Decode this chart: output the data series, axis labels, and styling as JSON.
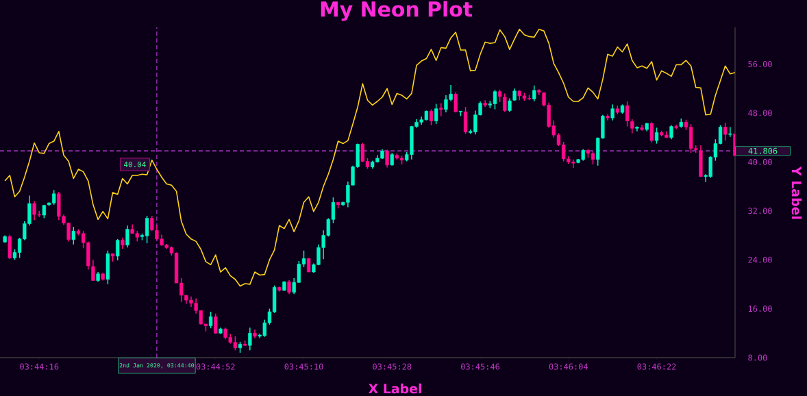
{
  "chart_data": {
    "type": "candlestick",
    "title": "My Neon Plot",
    "xlabel": "X Label",
    "ylabel": "Y Label",
    "x": [
      "2020-01-02T03:44:09",
      "2020-01-02T03:44:10",
      "2020-01-02T03:44:11",
      "2020-01-02T03:44:12",
      "2020-01-02T03:44:13",
      "2020-01-02T03:44:14",
      "2020-01-02T03:44:15",
      "2020-01-02T03:44:16",
      "2020-01-02T03:44:17",
      "2020-01-02T03:44:18",
      "2020-01-02T03:44:19",
      "2020-01-02T03:44:20",
      "2020-01-02T03:44:21",
      "2020-01-02T03:44:22",
      "2020-01-02T03:44:23",
      "2020-01-02T03:44:24",
      "2020-01-02T03:44:25",
      "2020-01-02T03:44:26",
      "2020-01-02T03:44:27",
      "2020-01-02T03:44:28",
      "2020-01-02T03:44:29",
      "2020-01-02T03:44:30",
      "2020-01-02T03:44:31",
      "2020-01-02T03:44:32",
      "2020-01-02T03:44:33",
      "2020-01-02T03:44:34",
      "2020-01-02T03:44:35",
      "2020-01-02T03:44:36",
      "2020-01-02T03:44:37",
      "2020-01-02T03:44:38",
      "2020-01-02T03:44:39",
      "2020-01-02T03:44:40",
      "2020-01-02T03:44:41",
      "2020-01-02T03:44:42",
      "2020-01-02T03:44:43",
      "2020-01-02T03:44:44",
      "2020-01-02T03:44:45",
      "2020-01-02T03:44:46",
      "2020-01-02T03:44:47",
      "2020-01-02T03:44:48",
      "2020-01-02T03:44:49",
      "2020-01-02T03:44:50",
      "2020-01-02T03:44:51",
      "2020-01-02T03:44:52",
      "2020-01-02T03:44:53",
      "2020-01-02T03:44:54",
      "2020-01-02T03:44:55",
      "2020-01-02T03:44:56",
      "2020-01-02T03:44:57",
      "2020-01-02T03:44:58",
      "2020-01-02T03:44:59",
      "2020-01-02T03:45:00",
      "2020-01-02T03:45:01",
      "2020-01-02T03:45:02",
      "2020-01-02T03:45:03",
      "2020-01-02T03:45:04",
      "2020-01-02T03:45:05",
      "2020-01-02T03:45:06",
      "2020-01-02T03:45:07",
      "2020-01-02T03:45:08",
      "2020-01-02T03:45:09",
      "2020-01-02T03:45:10",
      "2020-01-02T03:45:11",
      "2020-01-02T03:45:12",
      "2020-01-02T03:45:13",
      "2020-01-02T03:45:14",
      "2020-01-02T03:45:15",
      "2020-01-02T03:45:16",
      "2020-01-02T03:45:17",
      "2020-01-02T03:45:18",
      "2020-01-02T03:45:19",
      "2020-01-02T03:45:20",
      "2020-01-02T03:45:21",
      "2020-01-02T03:45:22",
      "2020-01-02T03:45:23",
      "2020-01-02T03:45:24",
      "2020-01-02T03:45:25",
      "2020-01-02T03:45:26",
      "2020-01-02T03:45:27",
      "2020-01-02T03:45:28",
      "2020-01-02T03:45:29",
      "2020-01-02T03:45:30",
      "2020-01-02T03:45:31",
      "2020-01-02T03:45:32",
      "2020-01-02T03:45:33",
      "2020-01-02T03:45:34",
      "2020-01-02T03:45:35",
      "2020-01-02T03:45:36",
      "2020-01-02T03:45:37",
      "2020-01-02T03:45:38",
      "2020-01-02T03:45:39",
      "2020-01-02T03:45:40",
      "2020-01-02T03:45:41",
      "2020-01-02T03:45:42",
      "2020-01-02T03:45:43",
      "2020-01-02T03:45:44",
      "2020-01-02T03:45:45",
      "2020-01-02T03:45:46",
      "2020-01-02T03:45:47",
      "2020-01-02T03:45:48",
      "2020-01-02T03:45:49",
      "2020-01-02T03:45:50",
      "2020-01-02T03:45:51",
      "2020-01-02T03:45:52",
      "2020-01-02T03:45:53",
      "2020-01-02T03:45:54",
      "2020-01-02T03:45:55",
      "2020-01-02T03:45:56",
      "2020-01-02T03:45:57",
      "2020-01-02T03:45:58",
      "2020-01-02T03:45:59",
      "2020-01-02T03:46:00",
      "2020-01-02T03:46:01",
      "2020-01-02T03:46:02",
      "2020-01-02T03:46:03",
      "2020-01-02T03:46:04",
      "2020-01-02T03:46:05",
      "2020-01-02T03:46:06",
      "2020-01-02T03:46:07",
      "2020-01-02T03:46:08",
      "2020-01-02T03:46:09",
      "2020-01-02T03:46:10",
      "2020-01-02T03:46:11",
      "2020-01-02T03:46:12",
      "2020-01-02T03:46:13",
      "2020-01-02T03:46:14",
      "2020-01-02T03:46:15",
      "2020-01-02T03:46:16",
      "2020-01-02T03:46:17",
      "2020-01-02T03:46:18",
      "2020-01-02T03:46:19",
      "2020-01-02T03:46:20",
      "2020-01-02T03:46:21",
      "2020-01-02T03:46:22",
      "2020-01-02T03:46:23",
      "2020-01-02T03:46:24",
      "2020-01-02T03:46:25",
      "2020-01-02T03:46:26",
      "2020-01-02T03:46:27",
      "2020-01-02T03:46:28",
      "2020-01-02T03:46:29",
      "2020-01-02T03:46:30",
      "2020-01-02T03:46:31",
      "2020-01-02T03:46:32",
      "2020-01-02T03:46:33",
      "2020-01-02T03:46:34",
      "2020-01-02T03:46:35",
      "2020-01-02T03:46:36",
      "2020-01-02T03:46:37",
      "2020-01-02T03:46:38"
    ],
    "series": [
      {
        "type": "candlestick",
        "ohlc": [
          [
            26.9,
            28.0,
            26.8,
            27.8
          ],
          [
            27.8,
            28.1,
            24.1,
            24.3
          ],
          [
            24.3,
            25.7,
            24.0,
            25.2
          ],
          [
            25.2,
            27.6,
            24.3,
            27.4
          ],
          [
            27.4,
            30.3,
            27.2,
            29.9
          ],
          [
            29.9,
            34.5,
            29.6,
            33.2
          ],
          [
            33.2,
            33.6,
            30.5,
            31.4
          ],
          [
            31.4,
            32.0,
            31.0,
            31.3
          ],
          [
            31.3,
            33.0,
            30.8,
            32.9
          ],
          [
            33.0,
            33.4,
            32.8,
            33.3
          ],
          [
            33.3,
            35.4,
            33.0,
            34.8
          ],
          [
            34.8,
            35.1,
            30.5,
            31.1
          ],
          [
            31.1,
            31.4,
            29.7,
            30.0
          ],
          [
            30.0,
            30.1,
            27.0,
            27.3
          ],
          [
            27.3,
            29.4,
            26.5,
            28.7
          ],
          [
            28.7,
            29.0,
            28.0,
            28.3
          ],
          [
            28.3,
            28.7,
            25.9,
            26.8
          ],
          [
            26.8,
            27.0,
            22.4,
            23.0
          ],
          [
            22.9,
            24.0,
            20.6,
            20.6
          ],
          [
            20.6,
            22.0,
            20.4,
            21.7
          ],
          [
            21.7,
            21.9,
            20.6,
            20.8
          ],
          [
            20.8,
            25.5,
            20.0,
            25.0
          ],
          [
            25.0,
            25.0,
            23.7,
            24.6
          ],
          [
            24.6,
            27.4,
            23.9,
            27.2
          ],
          [
            27.2,
            27.6,
            25.8,
            26.4
          ],
          [
            26.4,
            29.6,
            26.0,
            29.0
          ],
          [
            29.0,
            29.8,
            28.3,
            28.3
          ],
          [
            28.3,
            28.7,
            27.0,
            27.7
          ],
          [
            27.8,
            28.3,
            27.2,
            28.0
          ],
          [
            27.9,
            31.2,
            26.7,
            30.8
          ],
          [
            30.8,
            31.2,
            28.7,
            28.9
          ],
          [
            28.8,
            29.7,
            27.2,
            27.4
          ],
          [
            27.4,
            28.1,
            26.3,
            26.4
          ],
          [
            26.4,
            26.6,
            25.8,
            26.0
          ],
          [
            26.0,
            26.2,
            24.7,
            25.1
          ],
          [
            25.1,
            25.2,
            20.2,
            20.2
          ],
          [
            20.2,
            21.0,
            17.1,
            18.2
          ],
          [
            18.2,
            18.2,
            16.8,
            17.4
          ],
          [
            17.4,
            18.0,
            16.3,
            16.9
          ],
          [
            16.9,
            17.7,
            15.2,
            15.7
          ],
          [
            15.7,
            15.7,
            13.4,
            13.5
          ],
          [
            13.5,
            13.5,
            12.3,
            13.2
          ],
          [
            13.2,
            15.5,
            12.8,
            14.7
          ],
          [
            14.7,
            15.2,
            11.9,
            12.0
          ],
          [
            12.0,
            12.9,
            11.9,
            12.7
          ],
          [
            12.7,
            12.9,
            11.0,
            11.3
          ],
          [
            11.3,
            11.9,
            10.3,
            10.5
          ],
          [
            10.5,
            11.5,
            9.2,
            9.6
          ],
          [
            9.6,
            10.6,
            8.8,
            10.2
          ],
          [
            10.2,
            10.8,
            9.9,
            10.0
          ],
          [
            10.0,
            12.9,
            9.2,
            12.0
          ],
          [
            12.0,
            12.6,
            11.2,
            11.5
          ],
          [
            11.5,
            11.9,
            11.2,
            11.7
          ],
          [
            11.6,
            14.2,
            11.4,
            13.7
          ],
          [
            13.7,
            16.0,
            13.4,
            15.5
          ],
          [
            15.5,
            19.8,
            15.3,
            19.5
          ],
          [
            19.5,
            19.6,
            18.8,
            19.0
          ],
          [
            19.0,
            20.5,
            18.9,
            20.4
          ],
          [
            20.4,
            20.7,
            18.4,
            18.7
          ],
          [
            18.7,
            21.0,
            18.4,
            20.3
          ],
          [
            20.3,
            23.8,
            20.2,
            23.3
          ],
          [
            23.3,
            25.5,
            22.8,
            24.2
          ],
          [
            24.2,
            24.3,
            22.0,
            22.0
          ],
          [
            22.0,
            23.4,
            21.9,
            23.2
          ],
          [
            23.2,
            26.5,
            23.1,
            26.0
          ],
          [
            26.0,
            28.8,
            24.1,
            28.0
          ],
          [
            28.0,
            30.8,
            27.8,
            30.6
          ],
          [
            30.6,
            34.2,
            30.0,
            33.4
          ],
          [
            33.4,
            33.4,
            32.4,
            33.0
          ],
          [
            33.0,
            33.5,
            32.8,
            33.4
          ],
          [
            33.4,
            36.8,
            32.6,
            36.2
          ],
          [
            36.2,
            39.4,
            36.2,
            39.2
          ],
          [
            39.2,
            43.0,
            39.0,
            42.9
          ],
          [
            42.9,
            43.1,
            40.0,
            40.1
          ],
          [
            40.1,
            40.6,
            38.9,
            39.2
          ],
          [
            39.2,
            40.2,
            38.9,
            40.0
          ],
          [
            40.0,
            41.1,
            39.9,
            40.6
          ],
          [
            40.6,
            42.1,
            40.5,
            41.8
          ],
          [
            41.8,
            42.0,
            39.1,
            39.5
          ],
          [
            39.5,
            41.5,
            39.4,
            41.2
          ],
          [
            41.1,
            41.4,
            40.4,
            40.6
          ],
          [
            40.6,
            41.0,
            39.6,
            40.3
          ],
          [
            40.3,
            41.6,
            40.1,
            41.2
          ],
          [
            41.2,
            45.9,
            40.4,
            45.8
          ],
          [
            45.8,
            47.0,
            45.6,
            46.5
          ],
          [
            46.5,
            47.4,
            46.1,
            46.9
          ],
          [
            46.9,
            48.4,
            46.8,
            48.3
          ],
          [
            48.3,
            48.6,
            46.0,
            46.7
          ],
          [
            46.7,
            49.5,
            46.2,
            48.7
          ],
          [
            48.8,
            49.6,
            47.5,
            48.6
          ],
          [
            48.6,
            50.9,
            48.1,
            50.2
          ],
          [
            50.2,
            52.6,
            49.9,
            51.1
          ],
          [
            51.1,
            51.4,
            48.1,
            48.2
          ],
          [
            48.2,
            48.3,
            47.5,
            48.3
          ],
          [
            48.2,
            49.0,
            44.6,
            44.9
          ],
          [
            44.8,
            45.3,
            44.6,
            45.0
          ],
          [
            44.9,
            48.4,
            44.5,
            47.7
          ],
          [
            47.7,
            49.9,
            47.6,
            49.6
          ],
          [
            49.6,
            50.1,
            49.0,
            49.3
          ],
          [
            49.3,
            50.0,
            48.8,
            49.5
          ],
          [
            49.5,
            51.8,
            48.6,
            51.5
          ],
          [
            51.5,
            51.8,
            49.8,
            50.7
          ],
          [
            50.6,
            51.2,
            48.2,
            48.4
          ],
          [
            48.4,
            50.4,
            48.2,
            50.0
          ],
          [
            50.1,
            52.0,
            50.0,
            51.6
          ],
          [
            51.6,
            51.7,
            50.1,
            50.8
          ],
          [
            50.8,
            51.3,
            50.0,
            50.4
          ],
          [
            50.4,
            51.0,
            50.1,
            50.3
          ],
          [
            50.3,
            52.5,
            49.9,
            51.7
          ],
          [
            51.7,
            51.9,
            50.9,
            51.4
          ],
          [
            51.3,
            51.4,
            49.1,
            49.3
          ],
          [
            49.3,
            49.7,
            45.6,
            45.8
          ],
          [
            45.9,
            46.8,
            44.0,
            44.4
          ],
          [
            44.4,
            44.7,
            42.6,
            42.8
          ],
          [
            42.8,
            43.3,
            40.1,
            40.5
          ],
          [
            40.5,
            40.9,
            39.7,
            40.0
          ],
          [
            40.0,
            40.4,
            39.0,
            39.8
          ],
          [
            39.9,
            40.5,
            39.8,
            40.4
          ],
          [
            40.4,
            42.1,
            40.2,
            41.9
          ],
          [
            41.9,
            42.1,
            40.7,
            41.4
          ],
          [
            41.4,
            41.7,
            39.6,
            40.4
          ],
          [
            40.4,
            44.0,
            39.4,
            43.9
          ],
          [
            43.9,
            47.7,
            43.8,
            47.5
          ],
          [
            47.5,
            47.8,
            46.8,
            47.2
          ],
          [
            47.2,
            49.4,
            46.8,
            48.7
          ],
          [
            48.7,
            49.2,
            47.8,
            48.1
          ],
          [
            48.1,
            49.4,
            47.9,
            49.2
          ],
          [
            49.2,
            49.9,
            45.8,
            46.7
          ],
          [
            46.6,
            47.0,
            44.7,
            45.5
          ],
          [
            45.5,
            45.8,
            45.0,
            45.7
          ],
          [
            45.6,
            46.1,
            45.1,
            45.3
          ],
          [
            45.3,
            46.4,
            45.0,
            46.3
          ],
          [
            46.3,
            46.5,
            43.2,
            43.5
          ],
          [
            43.5,
            45.6,
            43.0,
            44.8
          ],
          [
            44.8,
            45.1,
            44.2,
            44.4
          ],
          [
            44.4,
            45.0,
            43.9,
            44.0
          ],
          [
            44.0,
            46.0,
            43.7,
            45.8
          ],
          [
            45.8,
            46.1,
            45.4,
            45.6
          ],
          [
            45.8,
            47.1,
            45.6,
            46.5
          ],
          [
            46.5,
            46.9,
            45.2,
            45.7
          ],
          [
            45.7,
            46.2,
            41.5,
            42.2
          ],
          [
            42.2,
            42.7,
            41.5,
            42.0
          ],
          [
            41.8,
            42.7,
            37.6,
            37.6
          ],
          [
            37.6,
            38.0,
            36.7,
            37.8
          ],
          [
            37.6,
            40.9,
            37.4,
            40.8
          ],
          [
            40.8,
            43.7,
            40.2,
            43.0
          ],
          [
            43.0,
            46.0,
            42.9,
            45.7
          ],
          [
            45.7,
            46.4,
            43.5,
            44.5
          ],
          [
            44.5,
            45.7,
            44.1,
            44.6
          ],
          [
            44.6,
            44.6,
            40.9,
            41.0
          ]
        ],
        "colors": [
          "#00f5c4",
          "#ff0a8c",
          "#00f5c4",
          "#00f5c4",
          "#00f5c4",
          "#00f5c4",
          "#ff0a8c",
          "#ff0a8c",
          "#00f5c4",
          "#00f5c4",
          "#00f5c4",
          "#ff0a8c",
          "#ff0a8c",
          "#ff0a8c",
          "#00f5c4",
          "#ff0a8c",
          "#ff0a8c",
          "#ff0a8c",
          "#ff0a8c",
          "#00f5c4",
          "#ff0a8c",
          "#00f5c4",
          "#ff0a8c",
          "#00f5c4",
          "#ff0a8c",
          "#00f5c4",
          "#ff0a8c",
          "#ff0a8c",
          "#00f5c4",
          "#00f5c4",
          "#ff0a8c",
          "#ff0a8c",
          "#ff0a8c",
          "#ff0a8c",
          "#ff0a8c",
          "#ff0a8c",
          "#ff0a8c",
          "#ff0a8c",
          "#ff0a8c",
          "#ff0a8c",
          "#ff0a8c",
          "#ff0a8c",
          "#00f5c4",
          "#ff0a8c",
          "#00f5c4",
          "#ff0a8c",
          "#ff0a8c",
          "#ff0a8c",
          "#00f5c4",
          "#ff0a8c",
          "#00f5c4",
          "#ff0a8c",
          "#00f5c4",
          "#00f5c4",
          "#00f5c4",
          "#00f5c4",
          "#ff0a8c",
          "#00f5c4",
          "#ff0a8c",
          "#00f5c4",
          "#00f5c4",
          "#00f5c4",
          "#ff0a8c",
          "#00f5c4",
          "#00f5c4",
          "#00f5c4",
          "#00f5c4",
          "#00f5c4",
          "#ff0a8c",
          "#00f5c4",
          "#00f5c4",
          "#00f5c4",
          "#00f5c4",
          "#ff0a8c",
          "#ff0a8c",
          "#00f5c4",
          "#00f5c4",
          "#00f5c4",
          "#ff0a8c",
          "#00f5c4",
          "#ff0a8c",
          "#ff0a8c",
          "#00f5c4",
          "#00f5c4",
          "#00f5c4",
          "#00f5c4",
          "#00f5c4",
          "#ff0a8c",
          "#00f5c4",
          "#ff0a8c",
          "#00f5c4",
          "#00f5c4",
          "#ff0a8c",
          "#00f5c4",
          "#ff0a8c",
          "#00f5c4",
          "#00f5c4",
          "#00f5c4",
          "#ff0a8c",
          "#00f5c4",
          "#00f5c4",
          "#ff0a8c",
          "#ff0a8c",
          "#00f5c4",
          "#00f5c4",
          "#ff0a8c",
          "#ff0a8c",
          "#ff0a8c",
          "#00f5c4",
          "#ff0a8c",
          "#ff0a8c",
          "#ff0a8c",
          "#ff0a8c",
          "#ff0a8c",
          "#ff0a8c",
          "#ff0a8c",
          "#ff0a8c",
          "#00f5c4",
          "#00f5c4",
          "#ff0a8c",
          "#ff0a8c",
          "#00f5c4",
          "#00f5c4",
          "#ff0a8c",
          "#00f5c4",
          "#ff0a8c",
          "#00f5c4",
          "#ff0a8c",
          "#ff0a8c",
          "#00f5c4",
          "#ff0a8c",
          "#00f5c4",
          "#ff0a8c",
          "#00f5c4",
          "#ff0a8c",
          "#ff0a8c",
          "#00f5c4",
          "#ff0a8c",
          "#00f5c4",
          "#ff0a8c",
          "#ff0a8c",
          "#ff0a8c",
          "#ff0a8c",
          "#00f5c4",
          "#00f5c4",
          "#00f5c4",
          "#00f5c4",
          "#ff0a8c",
          "#00f5c4",
          "#ff0a8c"
        ]
      },
      {
        "type": "line",
        "color": "#ffd21a",
        "values": [
          36.9,
          37.8,
          34.3,
          35.2,
          37.5,
          40.1,
          43.1,
          41.5,
          41.4,
          43.0,
          43.4,
          45.0,
          41.1,
          40.1,
          37.3,
          38.8,
          38.4,
          36.9,
          33.0,
          30.6,
          31.9,
          30.7,
          35.0,
          34.7,
          37.3,
          36.4,
          37.8,
          37.8,
          38.0,
          37.9,
          40.3,
          38.8,
          37.5,
          36.4,
          36.2,
          35.2,
          30.3,
          28.2,
          27.4,
          27.0,
          25.7,
          23.7,
          23.2,
          24.8,
          22.0,
          22.7,
          21.4,
          20.8,
          19.7,
          20.1,
          20.0,
          22.0,
          21.5,
          21.6,
          24.0,
          25.6,
          29.6,
          29.1,
          30.6,
          28.6,
          30.4,
          33.4,
          34.3,
          31.9,
          33.4,
          36.0,
          38.0,
          40.4,
          43.4,
          43.0,
          43.5,
          46.2,
          49.0,
          52.8,
          50.1,
          49.3,
          49.9,
          50.6,
          52.0,
          49.4,
          51.2,
          50.9,
          50.3,
          51.2,
          55.8,
          56.5,
          56.9,
          58.4,
          56.6,
          58.7,
          58.6,
          60.3,
          61.2,
          58.3,
          58.3,
          54.9,
          55.0,
          57.6,
          59.6,
          59.4,
          59.5,
          61.6,
          60.5,
          58.4,
          60.1,
          61.7,
          60.8,
          60.5,
          60.4,
          61.7,
          61.4,
          59.4,
          56.1,
          54.6,
          52.9,
          50.6,
          49.9,
          49.9,
          50.5,
          52.1,
          51.4,
          50.3,
          53.5,
          57.6,
          57.3,
          58.8,
          58.0,
          59.3,
          56.6,
          55.4,
          55.7,
          55.3,
          56.4,
          53.4,
          54.9,
          54.5,
          54.0,
          55.9,
          55.9,
          56.6,
          55.7,
          52.2,
          52.1,
          47.7,
          47.8,
          50.9,
          53.3,
          55.7,
          54.4,
          54.6
        ]
      }
    ],
    "xlim": [
      "2020-01-02T03:44:08",
      "2020-01-02T03:46:38"
    ],
    "xticks": [
      {
        "value": "2020-01-02T03:44:16",
        "label": "03:44:16"
      },
      {
        "value": "2020-01-02T03:44:52",
        "label": "03:44:52"
      },
      {
        "value": "2020-01-02T03:45:10",
        "label": "03:45:10"
      },
      {
        "value": "2020-01-02T03:45:28",
        "label": "03:45:28"
      },
      {
        "value": "2020-01-02T03:45:46",
        "label": "03:45:46"
      },
      {
        "value": "2020-01-02T03:46:04",
        "label": "03:46:04"
      },
      {
        "value": "2020-01-02T03:46:22",
        "label": "03:46:22"
      }
    ],
    "ylim": [
      8,
      62
    ],
    "yticks": [
      {
        "value": 8,
        "label": "8.00"
      },
      {
        "value": 16,
        "label": "16.00"
      },
      {
        "value": 24,
        "label": "24.00"
      },
      {
        "value": 32,
        "label": "32.00"
      },
      {
        "value": 40,
        "label": "40.00"
      },
      {
        "value": 48,
        "label": "48.00"
      },
      {
        "value": 56,
        "label": "56.00"
      }
    ],
    "ref_lines": [
      {
        "axis": "x",
        "value": "2020-01-02T03:44:40",
        "label": "2nd Jan 2020, 03:44:40",
        "color": "#c23ee0",
        "line_style": "dashed"
      },
      {
        "axis": "y",
        "value": 41.806,
        "label": "41.806",
        "color": "#c23ee0",
        "line_style": "dashed"
      }
    ],
    "annotations": [
      {
        "text": "40.04",
        "x": "2020-01-02T03:44:40",
        "y": 40.04
      }
    ]
  }
}
